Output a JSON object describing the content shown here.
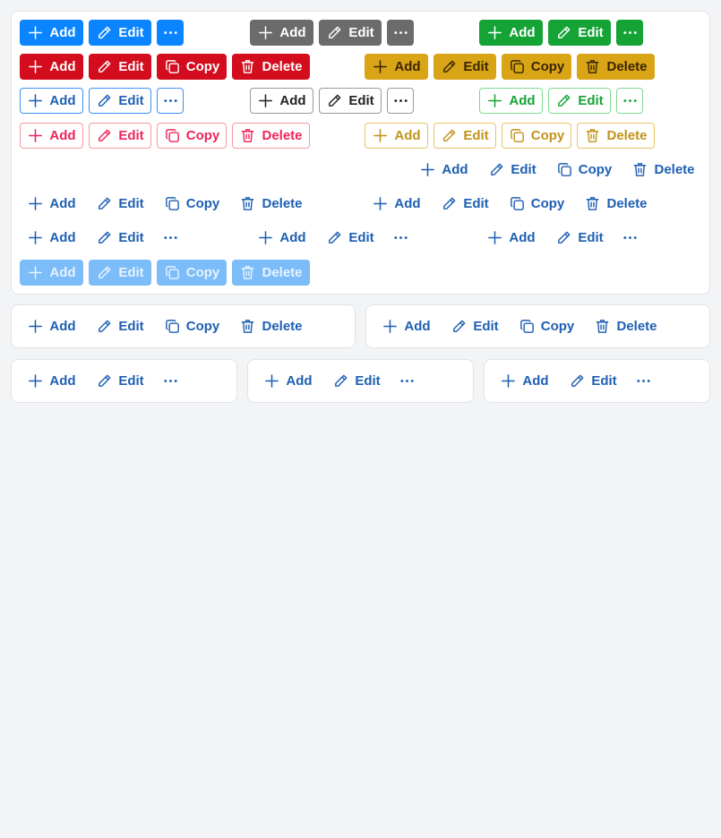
{
  "labels": {
    "add": "Add",
    "edit": "Edit",
    "copy": "Copy",
    "delete": "Delete"
  },
  "colors": {
    "primary": "#0a84ff",
    "secondary": "#6b6b6b",
    "success": "#16a336",
    "danger": "#d30d1e",
    "warning": "#d9a416"
  },
  "groups": [
    {
      "style": "s-primary",
      "buttons": [
        "add",
        "edit",
        "more"
      ]
    },
    {
      "style": "s-secondary",
      "buttons": [
        "add",
        "edit",
        "more"
      ]
    },
    {
      "style": "s-success",
      "buttons": [
        "add",
        "edit",
        "more"
      ]
    },
    {
      "style": "s-danger",
      "buttons": [
        "add",
        "edit",
        "copy",
        "delete"
      ]
    },
    {
      "style": "s-warning",
      "buttons": [
        "add",
        "edit",
        "copy",
        "delete"
      ]
    },
    {
      "style": "o-primary",
      "buttons": [
        "add",
        "edit",
        "more"
      ]
    },
    {
      "style": "o-secondary",
      "buttons": [
        "add",
        "edit",
        "more"
      ]
    },
    {
      "style": "o-success",
      "buttons": [
        "add",
        "edit",
        "more"
      ]
    },
    {
      "style": "o-danger",
      "buttons": [
        "add",
        "edit",
        "copy",
        "delete"
      ]
    },
    {
      "style": "o-warning",
      "buttons": [
        "add",
        "edit",
        "copy",
        "delete"
      ]
    },
    {
      "style": "t-primary",
      "buttons": [
        "add",
        "edit",
        "copy",
        "delete"
      ]
    },
    {
      "style": "t-primary",
      "buttons": [
        "add",
        "edit",
        "copy",
        "delete"
      ]
    },
    {
      "style": "t-primary",
      "buttons": [
        "add",
        "edit",
        "copy",
        "delete"
      ]
    },
    {
      "style": "t-primary",
      "buttons": [
        "add",
        "edit",
        "more"
      ]
    },
    {
      "style": "t-primary",
      "buttons": [
        "add",
        "edit",
        "more"
      ]
    },
    {
      "style": "t-primary",
      "buttons": [
        "add",
        "edit",
        "more"
      ]
    },
    {
      "style": "d-primary",
      "disabled": true,
      "buttons": [
        "add",
        "edit",
        "copy",
        "delete"
      ]
    },
    {
      "style": "t-primary",
      "buttons": [
        "add",
        "edit",
        "copy",
        "delete"
      ]
    },
    {
      "style": "t-primary",
      "buttons": [
        "add",
        "edit",
        "copy",
        "delete"
      ]
    },
    {
      "style": "t-primary",
      "buttons": [
        "add",
        "edit",
        "more"
      ]
    },
    {
      "style": "t-primary",
      "buttons": [
        "add",
        "edit",
        "more"
      ]
    },
    {
      "style": "t-primary",
      "buttons": [
        "add",
        "edit",
        "more"
      ]
    }
  ]
}
